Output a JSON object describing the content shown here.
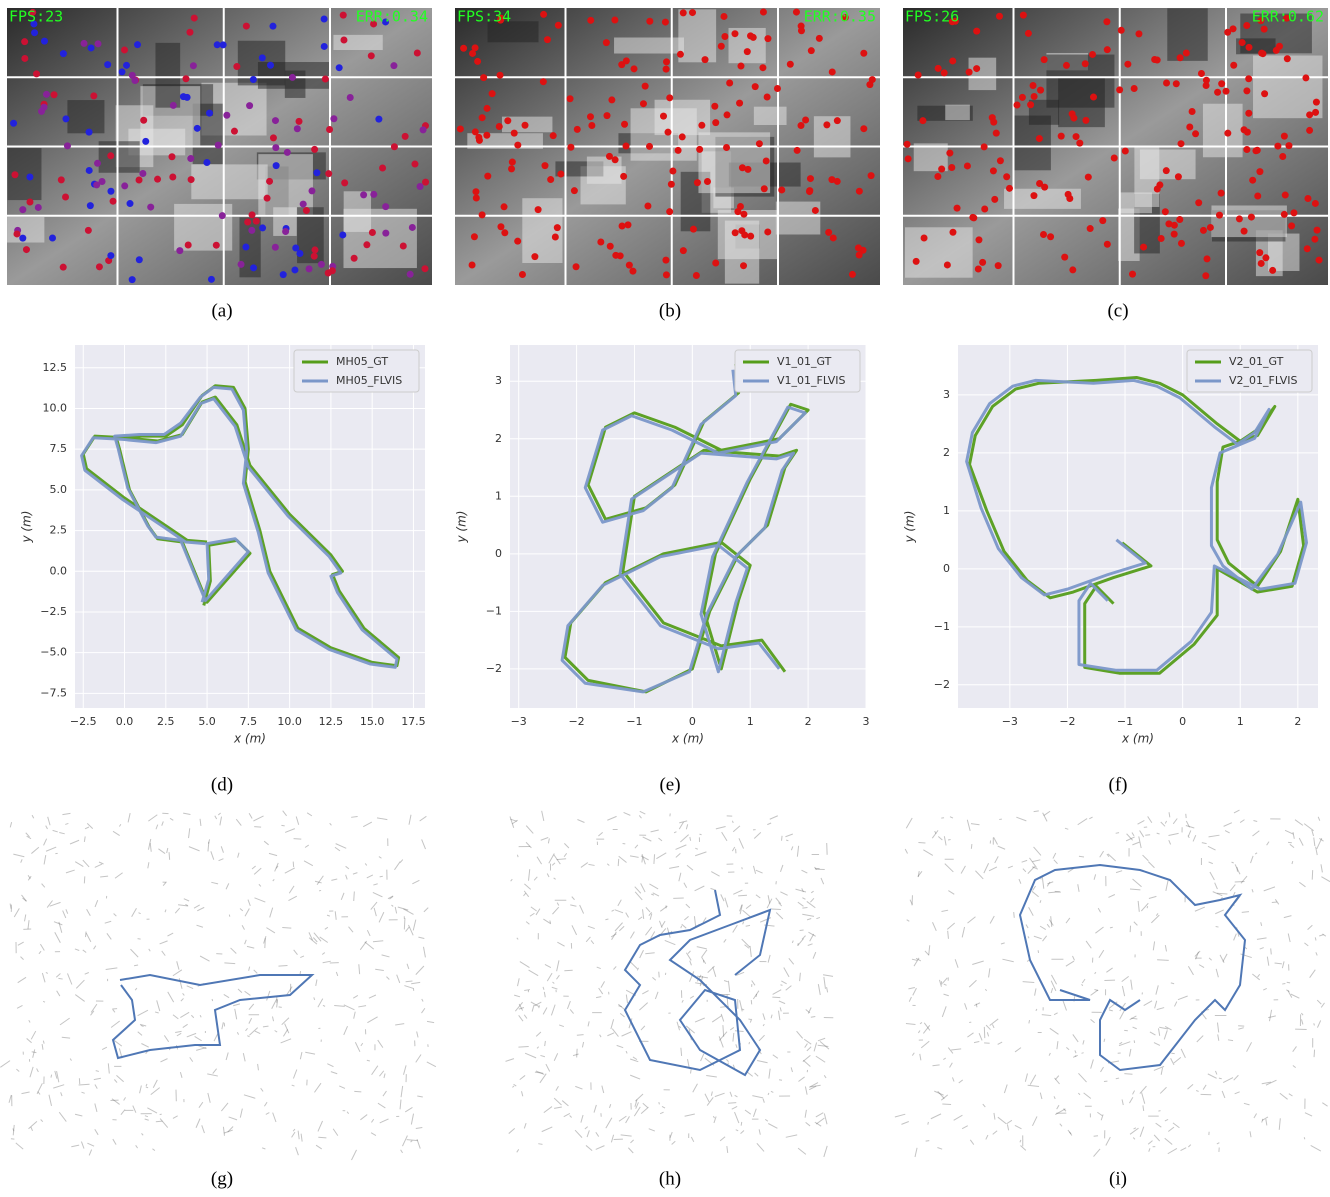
{
  "images": [
    {
      "fps": "FPS:23",
      "err": "ERR:0.34"
    },
    {
      "fps": "FPS:34",
      "err": "ERR:0.35"
    },
    {
      "fps": "FPS:26",
      "err": "ERR:0.62"
    }
  ],
  "captions": [
    "(a)",
    "(b)",
    "(c)",
    "(d)",
    "(e)",
    "(f)",
    "(g)",
    "(h)",
    "(i)"
  ],
  "chart_data": [
    {
      "type": "line",
      "xlabel": "x (m)",
      "ylabel": "y (m)",
      "grid": true,
      "legend": "upper right",
      "xlim": [
        -3,
        18.2
      ],
      "ylim": [
        -8.4,
        13.9
      ],
      "xticks": [
        {
          "value": -2.5,
          "label": "−2.5"
        },
        {
          "value": 0,
          "label": "0.0"
        },
        2.5,
        {
          "value": 5,
          "label": "5.0"
        },
        7.5,
        {
          "value": 10,
          "label": "10.0"
        },
        12.5,
        {
          "value": 15,
          "label": "15.0"
        },
        17.5
      ],
      "yticks": [
        {
          "value": -7.5,
          "label": "−7.5"
        },
        {
          "value": -5,
          "label": "−5.0"
        },
        {
          "value": -2.5,
          "label": "−2.5"
        },
        {
          "value": 0,
          "label": "0.0"
        },
        2.5,
        {
          "value": 5,
          "label": "5.0"
        },
        7.5,
        {
          "value": 10,
          "label": "10.0"
        },
        12.5
      ],
      "series": [
        {
          "name": "MH05_GT",
          "color": "#559d1a",
          "x": [
            4.8,
            5.2,
            5.1,
            6.8,
            7.6,
            5.0,
            3.5,
            2.0,
            1.5,
            0.3,
            -0.3,
            -0.5,
            1.0,
            2.5,
            3.5,
            4.7,
            5.5,
            6.6,
            7.3,
            7.5,
            7.3,
            8.2,
            8.8,
            10.5,
            12.5,
            15.0,
            16.5,
            16.6,
            14.5,
            13.0,
            12.6,
            13.2,
            12.5,
            10.0,
            7.6,
            6.8,
            5.5,
            4.7,
            3.5,
            2.0,
            0.0,
            -1.8,
            -2.5,
            -2.3,
            0.0,
            2.5,
            3.8,
            5.0
          ],
          "values": [
            -2.1,
            -0.6,
            1.6,
            1.9,
            1.1,
            -1.9,
            1.8,
            2.0,
            2.7,
            5.0,
            7.5,
            8.2,
            8.3,
            8.3,
            9.0,
            10.8,
            11.4,
            11.3,
            10.0,
            7.5,
            5.5,
            2.5,
            0.0,
            -3.5,
            -4.7,
            -5.6,
            -5.8,
            -5.3,
            -3.5,
            -1.2,
            -0.2,
            0.0,
            1.0,
            3.5,
            6.5,
            9.0,
            10.7,
            10.4,
            8.4,
            8.0,
            8.2,
            8.3,
            7.2,
            6.3,
            4.5,
            2.8,
            1.9,
            1.8
          ]
        },
        {
          "name": "MH05_FLVIS",
          "color": "#7b97c9",
          "x": [
            4.7,
            5.1,
            5.0,
            6.7,
            7.5,
            4.9,
            3.4,
            1.9,
            1.4,
            0.2,
            -0.4,
            -0.6,
            0.9,
            2.4,
            3.4,
            4.6,
            5.4,
            6.5,
            7.2,
            7.4,
            7.2,
            8.1,
            8.7,
            10.4,
            12.4,
            14.9,
            16.4,
            16.5,
            14.4,
            12.9,
            12.5,
            13.1,
            12.4,
            9.9,
            7.5,
            6.7,
            5.4,
            4.6,
            3.4,
            1.9,
            -0.1,
            -1.9,
            -2.6,
            -2.4,
            -0.1,
            2.4,
            3.7,
            4.9
          ],
          "values": [
            -1.9,
            -0.5,
            1.7,
            2.0,
            1.2,
            -1.8,
            1.9,
            2.1,
            2.8,
            5.1,
            7.6,
            8.3,
            8.4,
            8.4,
            9.1,
            10.7,
            11.3,
            11.2,
            9.9,
            7.4,
            5.4,
            2.4,
            -0.1,
            -3.6,
            -4.8,
            -5.7,
            -5.9,
            -5.4,
            -3.6,
            -1.3,
            -0.3,
            -0.1,
            0.9,
            3.4,
            6.4,
            8.9,
            10.6,
            10.3,
            8.3,
            7.9,
            8.1,
            8.2,
            7.1,
            6.2,
            4.4,
            2.7,
            1.8,
            1.7
          ]
        }
      ]
    },
    {
      "type": "line",
      "xlabel": "x (m)",
      "ylabel": "y (m)",
      "grid": true,
      "legend": "upper right",
      "xlim": [
        -3.15,
        3
      ],
      "ylim": [
        -2.68,
        3.63
      ],
      "xticks": [
        {
          "value": -3,
          "label": "−3"
        },
        {
          "value": -2,
          "label": "−2"
        },
        {
          "value": -1,
          "label": "−1"
        },
        0,
        1,
        2,
        3
      ],
      "yticks": [
        {
          "value": -2,
          "label": "−2"
        },
        {
          "value": -1,
          "label": "−1"
        },
        0,
        1,
        2,
        3
      ],
      "series": [
        {
          "name": "V1_01_GT",
          "color": "#559d1a",
          "x": [
            0.75,
            0.8,
            0.2,
            -0.3,
            -0.8,
            -1.5,
            -1.8,
            -1.5,
            -1.0,
            -0.3,
            0.5,
            1.5,
            2.0,
            1.7,
            1.0,
            0.4,
            0.2,
            0.5,
            0.8,
            1.0,
            0.5,
            -0.5,
            -1.5,
            -2.1,
            -2.2,
            -1.8,
            -0.8,
            0.0,
            0.3,
            0.8,
            1.3,
            1.6,
            1.8,
            1.5,
            0.2,
            -1.0,
            -1.2,
            -0.5,
            0.5,
            1.2,
            1.6
          ],
          "values": [
            3.3,
            2.8,
            2.3,
            1.2,
            0.8,
            0.6,
            1.2,
            2.2,
            2.45,
            2.2,
            1.8,
            2.0,
            2.5,
            2.6,
            1.3,
            0.0,
            -1.0,
            -2.0,
            -0.8,
            -0.2,
            0.2,
            0.0,
            -0.5,
            -1.2,
            -1.8,
            -2.2,
            -2.4,
            -2.0,
            -1.0,
            0.0,
            0.5,
            1.5,
            1.8,
            1.7,
            1.8,
            1.0,
            -0.3,
            -1.2,
            -1.6,
            -1.5,
            -2.05
          ]
        },
        {
          "name": "V1_01_FLVIS",
          "color": "#7b97c9",
          "x": [
            0.7,
            0.75,
            0.15,
            -0.35,
            -0.85,
            -1.55,
            -1.85,
            -1.55,
            -1.05,
            -0.35,
            0.45,
            1.45,
            1.95,
            1.65,
            0.95,
            0.35,
            0.15,
            0.45,
            0.75,
            0.95,
            0.45,
            -0.55,
            -1.55,
            -2.15,
            -2.25,
            -1.85,
            -0.85,
            -0.05,
            0.25,
            0.75,
            1.25,
            1.55,
            1.75,
            1.45,
            0.15,
            -1.05,
            -1.25,
            -0.55,
            0.45,
            1.15,
            1.5
          ],
          "values": [
            3.2,
            2.75,
            2.25,
            1.15,
            0.75,
            0.55,
            1.15,
            2.15,
            2.4,
            2.15,
            1.75,
            1.95,
            2.45,
            2.55,
            1.25,
            -0.05,
            -1.05,
            -2.05,
            -0.85,
            -0.25,
            0.15,
            -0.05,
            -0.55,
            -1.25,
            -1.85,
            -2.25,
            -2.4,
            -2.05,
            -1.05,
            -0.05,
            0.45,
            1.45,
            1.75,
            1.65,
            1.75,
            0.95,
            -0.35,
            -1.25,
            -1.65,
            -1.55,
            -2.0
          ]
        }
      ]
    },
    {
      "type": "line",
      "xlabel": "x (m)",
      "ylabel": "y (m)",
      "grid": true,
      "legend": "upper right",
      "xlim": [
        -3.9,
        2.35
      ],
      "ylim": [
        -2.4,
        3.86
      ],
      "xticks": [
        {
          "value": -3,
          "label": "−3"
        },
        {
          "value": -2,
          "label": "−2"
        },
        {
          "value": -1,
          "label": "−1"
        },
        0,
        1,
        2
      ],
      "yticks": [
        {
          "value": -2,
          "label": "−2"
        },
        {
          "value": -1,
          "label": "−1"
        },
        0,
        1,
        2,
        3
      ],
      "series": [
        {
          "name": "V2_01_GT",
          "color": "#559d1a",
          "x": [
            -1.05,
            -0.55,
            -1.2,
            -1.9,
            -2.3,
            -2.7,
            -3.1,
            -3.4,
            -3.7,
            -3.6,
            -3.3,
            -2.9,
            -2.5,
            -1.5,
            -0.8,
            -0.4,
            0.0,
            0.6,
            1.0,
            1.3,
            1.6,
            1.3,
            0.7,
            0.6,
            0.6,
            0.8,
            1.3,
            1.7,
            2.0,
            2.1,
            1.9,
            1.3,
            0.6,
            0.6,
            0.2,
            -0.4,
            -1.1,
            -1.7,
            -1.7,
            -1.7,
            -1.5,
            -1.2
          ],
          "values": [
            0.45,
            0.05,
            -0.15,
            -0.4,
            -0.5,
            -0.2,
            0.3,
            1.0,
            1.8,
            2.3,
            2.8,
            3.1,
            3.2,
            3.25,
            3.3,
            3.2,
            3.0,
            2.5,
            2.2,
            2.4,
            2.8,
            2.3,
            2.1,
            1.5,
            0.5,
            0.1,
            -0.3,
            0.3,
            1.2,
            0.4,
            -0.3,
            -0.4,
            0.0,
            -0.8,
            -1.3,
            -1.8,
            -1.8,
            -1.7,
            -1.2,
            -0.6,
            -0.3,
            -0.6
          ]
        },
        {
          "name": "V2_01_FLVIS",
          "color": "#7b97c9",
          "x": [
            -1.15,
            -0.65,
            -1.3,
            -2.0,
            -2.4,
            -2.8,
            -3.2,
            -3.5,
            -3.75,
            -3.65,
            -3.35,
            -2.95,
            -2.55,
            -1.55,
            -0.85,
            -0.45,
            -0.05,
            0.55,
            0.95,
            1.25,
            1.5,
            1.25,
            0.65,
            0.5,
            0.5,
            0.7,
            1.2,
            1.65,
            2.05,
            2.15,
            1.95,
            1.35,
            0.55,
            0.5,
            0.15,
            -0.45,
            -1.15,
            -1.8,
            -1.8,
            -1.8,
            -1.6,
            -1.3
          ],
          "values": [
            0.5,
            0.1,
            -0.1,
            -0.35,
            -0.45,
            -0.15,
            0.35,
            1.05,
            1.85,
            2.35,
            2.85,
            3.15,
            3.25,
            3.2,
            3.25,
            3.15,
            2.95,
            2.45,
            2.15,
            2.35,
            2.75,
            2.25,
            2.0,
            1.4,
            0.4,
            0.05,
            -0.35,
            0.25,
            1.15,
            0.45,
            -0.25,
            -0.35,
            0.05,
            -0.75,
            -1.25,
            -1.75,
            -1.75,
            -1.65,
            -1.15,
            -0.55,
            -0.25,
            -0.55
          ]
        }
      ]
    }
  ]
}
